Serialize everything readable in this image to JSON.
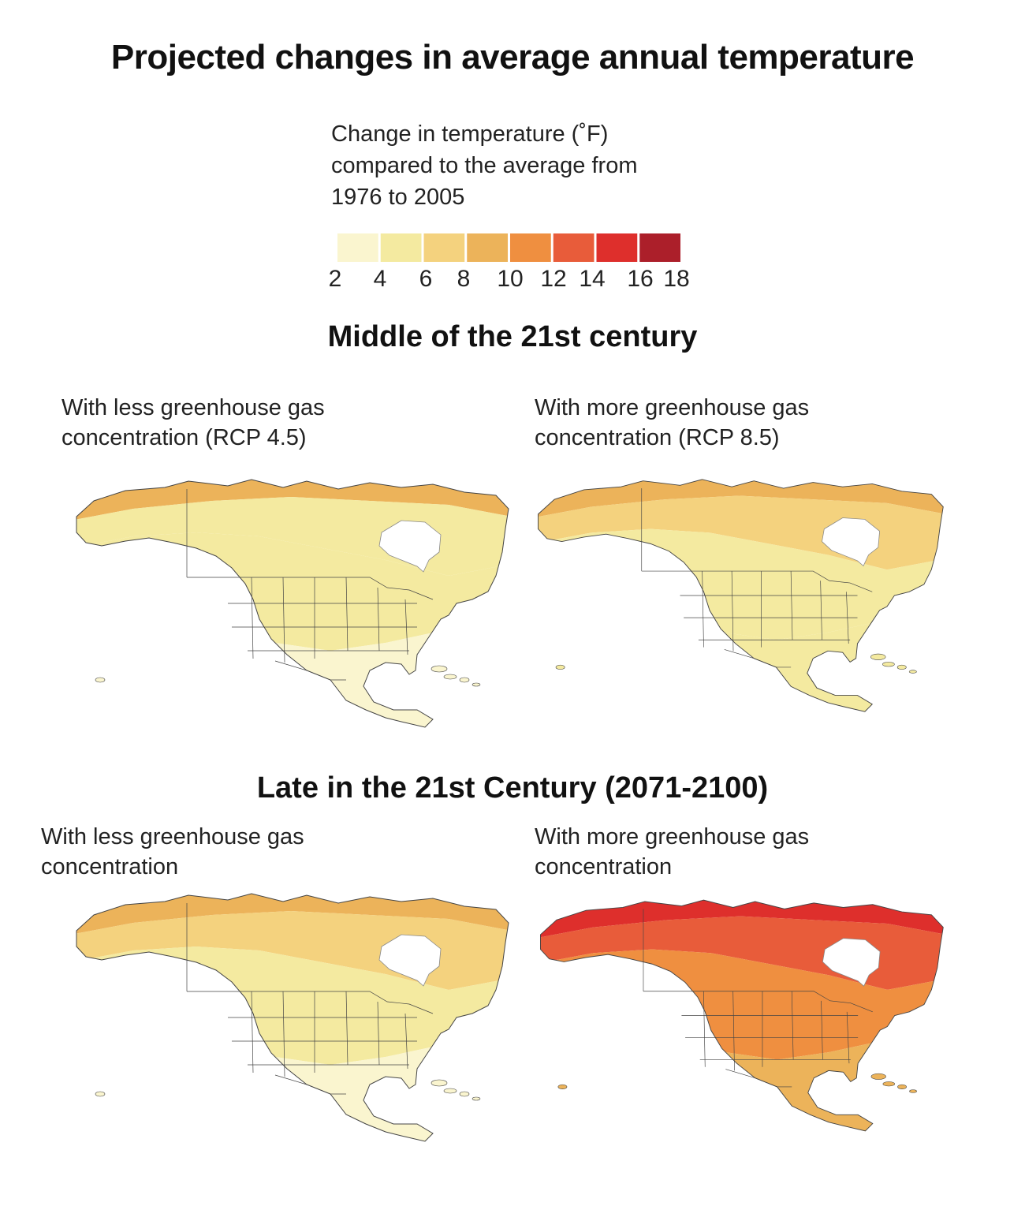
{
  "title": "Projected changes in average annual temperature",
  "legend": {
    "description_lines": [
      "Change in temperature (˚F)",
      "compared to the average from",
      "1976 to 2005"
    ],
    "ticks": [
      "2",
      "4",
      "6",
      "8",
      "10",
      "12",
      "14",
      "16",
      "18"
    ],
    "colors": [
      "#faf5cf",
      "#f4eaa0",
      "#f4d27e",
      "#ecb35a",
      "#ef8f40",
      "#e85c3a",
      "#de2f2c",
      "#ac1f2a"
    ]
  },
  "sections": [
    {
      "title": "Middle of the 21st century",
      "panels": [
        {
          "label_lines": [
            "With less greenhouse gas",
            "concentration (RCP 4.5)"
          ],
          "scenario": "RCP 4.5 mid-century"
        },
        {
          "label_lines": [
            "With more greenhouse gas",
            "concentration (RCP 8.5)"
          ],
          "scenario": "RCP 8.5 mid-century"
        }
      ]
    },
    {
      "title": "Late in the 21st Century (2071-2100)",
      "panels": [
        {
          "label_lines": [
            "With less greenhouse gas",
            "concentration"
          ],
          "scenario": "RCP 4.5 late-century"
        },
        {
          "label_lines": [
            "With more greenhouse gas",
            "concentration"
          ],
          "scenario": "RCP 8.5 late-century"
        }
      ]
    }
  ],
  "map_colors": {
    "land_border": "#444444",
    "ice": "#ffffff"
  }
}
